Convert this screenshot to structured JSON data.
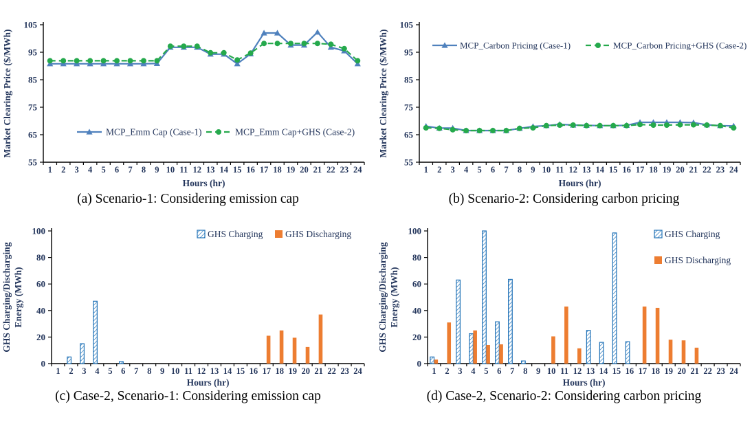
{
  "figure_title": "MCP and GHS charging/discharging results",
  "colors": {
    "case1_blue": "#4f81bd",
    "case2_green": "#25a94c",
    "charging_blue": "#2273b8",
    "discharging_orange": "#ED7D31",
    "chart_text": "#24365c",
    "axis_black": "#000000"
  },
  "chart_data": [
    {
      "panel": "a",
      "type": "line",
      "title": "(a) Scenario-1: Considering emission cap",
      "xlabel": "Hours (hr)",
      "ylabel": "Market Clearing Price ($/MWh)",
      "ylim": [
        55,
        105
      ],
      "yticks": [
        55,
        65,
        75,
        85,
        95,
        105
      ],
      "x": [
        1,
        2,
        3,
        4,
        5,
        6,
        7,
        8,
        9,
        10,
        11,
        12,
        13,
        14,
        15,
        16,
        17,
        18,
        19,
        20,
        21,
        22,
        23,
        24
      ],
      "legend_position": "inside-middle-horizontal",
      "series": [
        {
          "name": "MCP_Emm Cap (Case-1)",
          "color": "#4f81bd",
          "marker": "triangle",
          "dash": "solid",
          "values": [
            90.8,
            90.8,
            90.8,
            90.8,
            90.8,
            90.8,
            90.8,
            90.8,
            90.9,
            96.8,
            96.8,
            96.8,
            94.3,
            94.3,
            90.8,
            94.4,
            102,
            102,
            97.6,
            97.6,
            102.3,
            96.8,
            95.5,
            90.8
          ]
        },
        {
          "name": "MCP_Emm Cap+GHS  (Case-2)",
          "color": "#25a94c",
          "marker": "circle",
          "dash": "dashed",
          "values": [
            91.9,
            91.9,
            91.9,
            91.9,
            91.9,
            91.9,
            91.9,
            91.9,
            91.9,
            97.2,
            97.2,
            97.2,
            94.8,
            94.8,
            92.2,
            94.7,
            98.2,
            98.2,
            98.2,
            98.2,
            98.2,
            97.9,
            96.3,
            91.9
          ]
        }
      ]
    },
    {
      "panel": "b",
      "type": "line",
      "title": "(b) Scenario-2: Considering carbon pricing",
      "xlabel": "Hours (hr)",
      "ylabel": "Market Clearing Price ($/MWh)",
      "ylim": [
        55,
        105
      ],
      "yticks": [
        55,
        65,
        75,
        85,
        95,
        105
      ],
      "x": [
        1,
        2,
        3,
        4,
        5,
        6,
        7,
        8,
        9,
        10,
        11,
        12,
        13,
        14,
        15,
        16,
        17,
        18,
        19,
        20,
        21,
        22,
        23,
        24
      ],
      "legend_position": "inside-top-horizontal",
      "series": [
        {
          "name": "MCP_Carbon Pricing (Case-1)",
          "color": "#4f81bd",
          "marker": "triangle",
          "dash": "solid",
          "values": [
            68.1,
            67.4,
            67.4,
            66.5,
            66.5,
            66.5,
            66.5,
            67.3,
            68.0,
            68.3,
            68.8,
            68.5,
            68.4,
            68.3,
            68.3,
            68.4,
            69.5,
            69.5,
            69.5,
            69.5,
            69.4,
            68.6,
            68.3,
            68.2
          ]
        },
        {
          "name": "MCP_Carbon Pricing+GHS (Case-2)",
          "color": "#25a94c",
          "marker": "circle",
          "dash": "dashed",
          "values": [
            67.5,
            67.3,
            66.8,
            66.5,
            66.5,
            66.5,
            66.5,
            67.3,
            67.5,
            68.3,
            68.5,
            68.5,
            68.3,
            68.3,
            68.3,
            68.3,
            68.7,
            68.5,
            68.5,
            68.6,
            68.6,
            68.5,
            68.3,
            67.5
          ]
        }
      ]
    },
    {
      "panel": "c",
      "type": "bar",
      "title": "(c) Case-2, Scenario-1: Considering emission cap",
      "xlabel": "Hours (hr)",
      "ylabel": "GHS Charging/Discharging\nEnergy (MWh)",
      "ylim": [
        0,
        100
      ],
      "yticks": [
        0,
        20,
        40,
        60,
        80,
        100
      ],
      "x": [
        1,
        2,
        3,
        4,
        5,
        6,
        7,
        8,
        9,
        10,
        11,
        12,
        13,
        14,
        15,
        16,
        17,
        18,
        19,
        20,
        21,
        22,
        23,
        24
      ],
      "legend_position": "inside-top-right-horizontal",
      "series": [
        {
          "name": "GHS Charging",
          "style": "hatched",
          "color": "#2273b8",
          "values": [
            0,
            5,
            15,
            47,
            0,
            1.5,
            0,
            0,
            0,
            0,
            0,
            0,
            0,
            0,
            0,
            0,
            0,
            0,
            0,
            0,
            0,
            0,
            0,
            0
          ]
        },
        {
          "name": "GHS Discharging",
          "style": "solid",
          "color": "#ED7D31",
          "values": [
            0,
            0,
            0,
            0,
            0,
            0,
            0,
            0,
            0,
            0,
            0,
            0,
            0,
            0,
            0,
            0,
            21,
            25,
            19.5,
            12.5,
            37,
            0,
            0,
            0
          ]
        }
      ]
    },
    {
      "panel": "d",
      "type": "bar",
      "title": "(d) Case-2, Scenario-2: Considering carbon pricing",
      "xlabel": "Hours (hr)",
      "ylabel": "GHS Charging/Discharging\nEnergy (MWh)",
      "ylim": [
        0,
        100
      ],
      "yticks": [
        0,
        20,
        40,
        60,
        80,
        100
      ],
      "x": [
        1,
        2,
        3,
        4,
        5,
        6,
        7,
        8,
        9,
        10,
        11,
        12,
        13,
        14,
        15,
        16,
        17,
        18,
        19,
        20,
        21,
        22,
        23,
        24
      ],
      "legend_position": "inside-top-right-vertical",
      "series": [
        {
          "name": "GHS Charging",
          "style": "hatched",
          "color": "#2273b8",
          "values": [
            5,
            0,
            63,
            22.5,
            100,
            31.5,
            63.5,
            2,
            0,
            0,
            0,
            0,
            25,
            16,
            98.5,
            16.5,
            0,
            0,
            0,
            0,
            0,
            0,
            0,
            0
          ]
        },
        {
          "name": "GHS Discharging",
          "style": "solid",
          "color": "#ED7D31",
          "values": [
            3,
            31,
            0,
            25,
            14,
            14.5,
            0,
            0,
            0,
            20.5,
            43,
            11.5,
            0,
            0,
            0,
            0,
            43,
            42,
            18,
            17.5,
            12,
            0,
            0,
            0
          ]
        }
      ]
    }
  ]
}
